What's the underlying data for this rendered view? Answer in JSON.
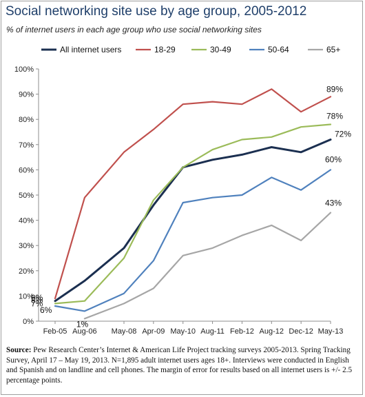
{
  "title": "Social networking site use by age group, 2005-2012",
  "subtitle": "% of internet users in each age group who use social networking sites",
  "source": {
    "label": "Source:",
    "text": "Pew Research Center’s Internet & American Life Project tracking surveys 2005-2013. Spring Tracking Survey, April 17 – May 19, 2013. N=1,895 adult internet users ages 18+. Interviews were conducted in English and Spanish and on landline and cell phones.  The margin of error for results based on all internet users is +/- 2.5 percentage points."
  },
  "chart_data": {
    "type": "line",
    "categories": [
      "Feb-05",
      "Aug-06",
      "May-08",
      "Apr-09",
      "May-10",
      "Aug-11",
      "Feb-12",
      "Aug-12",
      "Dec-12",
      "May-13"
    ],
    "x": [
      0,
      0.75,
      1.75,
      2.5,
      3.25,
      4.0,
      4.75,
      5.5,
      6.25,
      7.0
    ],
    "ylim": [
      0,
      100
    ],
    "yticks": [
      "0%",
      "10%",
      "20%",
      "30%",
      "40%",
      "50%",
      "60%",
      "70%",
      "80%",
      "90%",
      "100%"
    ],
    "grid": false,
    "legend": "top",
    "series": [
      {
        "name": "All internet users",
        "color": "#1b2f50",
        "values": [
          8,
          16,
          29,
          46,
          61,
          64,
          66,
          69,
          67,
          72
        ]
      },
      {
        "name": "18-29",
        "color": "#c0504d",
        "values": [
          9,
          49,
          67,
          76,
          86,
          87,
          86,
          92,
          83,
          89
        ]
      },
      {
        "name": "30-49",
        "color": "#9bbb59",
        "values": [
          7,
          8,
          25,
          48,
          61,
          68,
          72,
          73,
          77,
          78
        ]
      },
      {
        "name": "50-64",
        "color": "#4f81bd",
        "values": [
          6,
          4,
          11,
          24,
          47,
          49,
          50,
          57,
          52,
          60
        ]
      },
      {
        "name": "65+",
        "color": "#a6a6a6",
        "values": [
          null,
          1,
          7,
          13,
          26,
          29,
          34,
          38,
          32,
          43
        ]
      }
    ],
    "annotations": [
      {
        "series": 1,
        "point": 0,
        "text": "9%"
      },
      {
        "series": 0,
        "point": 0,
        "text": "8%"
      },
      {
        "series": 2,
        "point": 0,
        "text": "7%"
      },
      {
        "series": 3,
        "point": 0,
        "text": "6%"
      },
      {
        "series": 4,
        "point": 1,
        "text": "1%"
      },
      {
        "series": 1,
        "point": 9,
        "text": "89%"
      },
      {
        "series": 2,
        "point": 9,
        "text": "78%"
      },
      {
        "series": 0,
        "point": 9,
        "text": "72%"
      },
      {
        "series": 3,
        "point": 9,
        "text": "60%"
      },
      {
        "series": 4,
        "point": 9,
        "text": "43%"
      }
    ]
  }
}
